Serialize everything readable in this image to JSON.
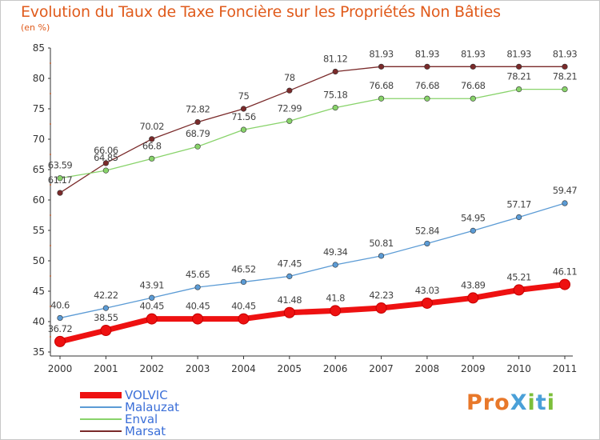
{
  "header": {
    "title": "Evolution du Taux de Taxe Foncière sur les Propriétés Non Bâties",
    "unit": "(en %)"
  },
  "logo": {
    "text": "ProXiti",
    "colors": [
      "#e8782a",
      "#4aa0d8",
      "#7cbf3a"
    ]
  },
  "chart_data": {
    "type": "line",
    "title": "Evolution du Taux de Taxe Foncière sur les Propriétés Non Bâties",
    "ylabel": "(en %)",
    "xlabel": "",
    "x": [
      2000,
      2001,
      2002,
      2003,
      2004,
      2005,
      2006,
      2007,
      2008,
      2009,
      2010,
      2011
    ],
    "ylim": [
      35,
      85
    ],
    "yticks": [
      35,
      40,
      45,
      50,
      55,
      60,
      65,
      70,
      75,
      80,
      85
    ],
    "grid": false,
    "legend_position": "bottom-left",
    "series": [
      {
        "name": "VOLVIC",
        "color": "#ee1111",
        "thick": true,
        "values": [
          36.72,
          38.55,
          40.45,
          40.45,
          40.45,
          41.48,
          41.8,
          42.23,
          43.03,
          43.89,
          45.21,
          46.11
        ],
        "labels": [
          "36.72",
          "38.55",
          "40.45",
          "40.45",
          "40.45",
          "41.48",
          "41.8",
          "42.23",
          "43.03",
          "43.89",
          "45.21",
          "46.11"
        ]
      },
      {
        "name": "Malauzat",
        "color": "#5b9bd5",
        "thick": false,
        "values": [
          40.6,
          42.22,
          43.91,
          45.65,
          46.52,
          47.45,
          49.34,
          50.81,
          52.84,
          54.95,
          57.17,
          59.47
        ],
        "labels": [
          "40.6",
          "42.22",
          "43.91",
          "45.65",
          "46.52",
          "47.45",
          "49.34",
          "50.81",
          "52.84",
          "54.95",
          "57.17",
          "59.47"
        ]
      },
      {
        "name": "Enval",
        "color": "#88d36a",
        "thick": false,
        "values": [
          63.59,
          64.85,
          66.8,
          68.79,
          71.56,
          72.99,
          75.18,
          76.68,
          76.68,
          76.68,
          78.21,
          78.21
        ],
        "labels": [
          "63.59",
          "64.85",
          "66.8",
          "68.79",
          "71.56",
          "72.99",
          "75.18",
          "76.68",
          "76.68",
          "76.68",
          "78.21",
          "78.21"
        ]
      },
      {
        "name": "Marsat",
        "color": "#7a2a2a",
        "thick": false,
        "values": [
          61.17,
          66.06,
          70.02,
          72.82,
          75,
          78,
          81.12,
          81.93,
          81.93,
          81.93,
          81.93,
          81.93
        ],
        "labels": [
          "61.17",
          "66.06",
          "70.02",
          "72.82",
          "75",
          "78",
          "81.12",
          "81.93",
          "81.93",
          "81.93",
          "81.93",
          "81.93"
        ]
      }
    ]
  }
}
